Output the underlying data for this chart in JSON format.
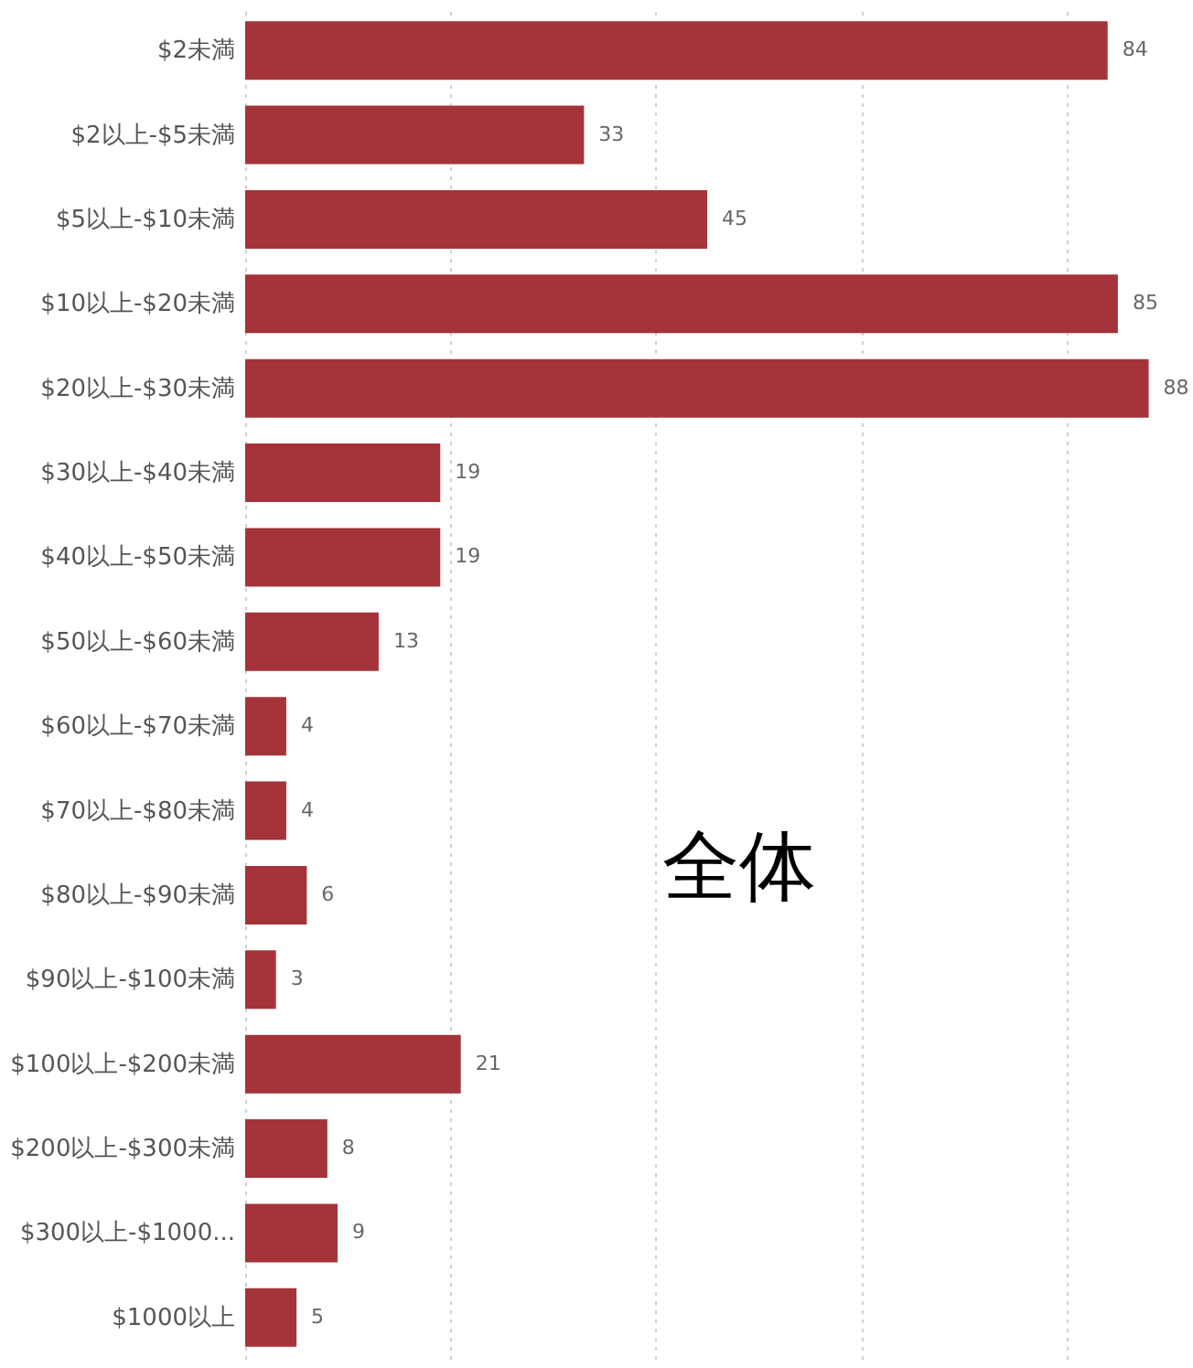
{
  "chart_data": {
    "type": "bar",
    "orientation": "horizontal",
    "categories": [
      "$2未満",
      "$2以上-$5未満",
      "$5以上-$10未満",
      "$10以上-$20未満",
      "$20以上-$30未満",
      "$30以上-$40未満",
      "$40以上-$50未満",
      "$50以上-$60未満",
      "$60以上-$70未満",
      "$70以上-$80未満",
      "$80以上-$90未満",
      "$90以上-$100未満",
      "$100以上-$200未満",
      "$200以上-$300未満",
      "$300以上-$1000...",
      "$1000以上"
    ],
    "values": [
      84,
      33,
      45,
      85,
      88,
      19,
      19,
      13,
      4,
      4,
      6,
      3,
      21,
      8,
      9,
      5
    ],
    "color": "#a4343a",
    "data_labels": true,
    "xticks": [
      {
        "value": 0,
        "label": null
      },
      {
        "value": 20,
        "label": null
      },
      {
        "value": 40,
        "label": null
      },
      {
        "value": 60,
        "label": null
      },
      {
        "value": 80,
        "label": null
      }
    ],
    "grid": "x",
    "tick_labels": "y",
    "annotations": [
      "全体"
    ]
  }
}
